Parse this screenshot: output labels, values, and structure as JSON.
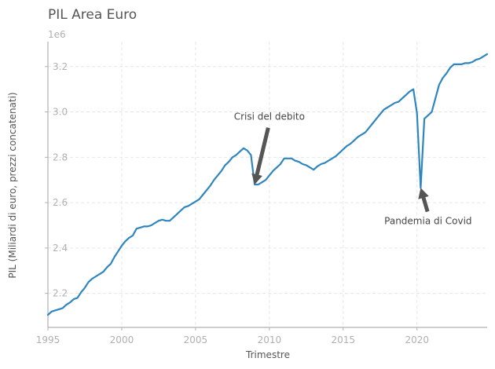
{
  "chart_data": {
    "type": "line",
    "title": "PIL Area Euro",
    "xlabel": "Trimestre",
    "ylabel": "PIL (Miliardi di euro, prezzi concatenati)",
    "y_offset_label": "1e6",
    "xlim": [
      1995.0,
      2024.75
    ],
    "ylim": [
      2.05,
      3.31
    ],
    "x_ticks": [
      1995,
      2000,
      2005,
      2010,
      2015,
      2020
    ],
    "x_tick_labels": [
      "1995",
      "2000",
      "2005",
      "2010",
      "2015",
      "2020"
    ],
    "y_ticks": [
      2.2,
      2.4,
      2.6,
      2.8,
      3.0,
      3.2
    ],
    "y_tick_labels": [
      "2.2",
      "2.4",
      "2.6",
      "2.8",
      "3.0",
      "3.2"
    ],
    "grid": true,
    "series": [
      {
        "color": "#2e86c1",
        "points": [
          [
            1995.0,
            2.105
          ],
          [
            1995.25,
            2.12
          ],
          [
            1995.5,
            2.125
          ],
          [
            1995.75,
            2.13
          ],
          [
            1996.0,
            2.135
          ],
          [
            1996.25,
            2.15
          ],
          [
            1996.5,
            2.16
          ],
          [
            1996.75,
            2.175
          ],
          [
            1997.0,
            2.18
          ],
          [
            1997.25,
            2.205
          ],
          [
            1997.5,
            2.225
          ],
          [
            1997.75,
            2.25
          ],
          [
            1998.0,
            2.265
          ],
          [
            1998.25,
            2.275
          ],
          [
            1998.5,
            2.285
          ],
          [
            1998.75,
            2.295
          ],
          [
            1999.0,
            2.315
          ],
          [
            1999.25,
            2.33
          ],
          [
            1999.5,
            2.36
          ],
          [
            1999.75,
            2.385
          ],
          [
            2000.0,
            2.41
          ],
          [
            2000.25,
            2.43
          ],
          [
            2000.5,
            2.445
          ],
          [
            2000.75,
            2.455
          ],
          [
            2001.0,
            2.485
          ],
          [
            2001.25,
            2.49
          ],
          [
            2001.5,
            2.495
          ],
          [
            2001.75,
            2.495
          ],
          [
            2002.0,
            2.5
          ],
          [
            2002.25,
            2.51
          ],
          [
            2002.5,
            2.52
          ],
          [
            2002.75,
            2.525
          ],
          [
            2003.0,
            2.52
          ],
          [
            2003.25,
            2.52
          ],
          [
            2003.5,
            2.535
          ],
          [
            2003.75,
            2.55
          ],
          [
            2004.0,
            2.565
          ],
          [
            2004.25,
            2.58
          ],
          [
            2004.5,
            2.585
          ],
          [
            2004.75,
            2.595
          ],
          [
            2005.0,
            2.605
          ],
          [
            2005.25,
            2.615
          ],
          [
            2005.5,
            2.635
          ],
          [
            2005.75,
            2.655
          ],
          [
            2006.0,
            2.675
          ],
          [
            2006.25,
            2.7
          ],
          [
            2006.5,
            2.72
          ],
          [
            2006.75,
            2.74
          ],
          [
            2007.0,
            2.765
          ],
          [
            2007.25,
            2.78
          ],
          [
            2007.5,
            2.8
          ],
          [
            2007.75,
            2.81
          ],
          [
            2008.0,
            2.825
          ],
          [
            2008.25,
            2.84
          ],
          [
            2008.5,
            2.83
          ],
          [
            2008.75,
            2.81
          ],
          [
            2009.0,
            2.68
          ],
          [
            2009.25,
            2.68
          ],
          [
            2009.5,
            2.69
          ],
          [
            2009.75,
            2.7
          ],
          [
            2010.0,
            2.72
          ],
          [
            2010.25,
            2.74
          ],
          [
            2010.5,
            2.755
          ],
          [
            2010.75,
            2.77
          ],
          [
            2011.0,
            2.795
          ],
          [
            2011.25,
            2.795
          ],
          [
            2011.5,
            2.795
          ],
          [
            2011.75,
            2.785
          ],
          [
            2012.0,
            2.78
          ],
          [
            2012.25,
            2.77
          ],
          [
            2012.5,
            2.765
          ],
          [
            2012.75,
            2.755
          ],
          [
            2013.0,
            2.745
          ],
          [
            2013.25,
            2.76
          ],
          [
            2013.5,
            2.77
          ],
          [
            2013.75,
            2.775
          ],
          [
            2014.0,
            2.785
          ],
          [
            2014.25,
            2.795
          ],
          [
            2014.5,
            2.805
          ],
          [
            2014.75,
            2.82
          ],
          [
            2015.0,
            2.835
          ],
          [
            2015.25,
            2.85
          ],
          [
            2015.5,
            2.86
          ],
          [
            2015.75,
            2.875
          ],
          [
            2016.0,
            2.89
          ],
          [
            2016.25,
            2.9
          ],
          [
            2016.5,
            2.91
          ],
          [
            2016.75,
            2.93
          ],
          [
            2017.0,
            2.95
          ],
          [
            2017.25,
            2.97
          ],
          [
            2017.5,
            2.99
          ],
          [
            2017.75,
            3.01
          ],
          [
            2018.0,
            3.02
          ],
          [
            2018.25,
            3.03
          ],
          [
            2018.5,
            3.04
          ],
          [
            2018.75,
            3.045
          ],
          [
            2019.0,
            3.06
          ],
          [
            2019.25,
            3.075
          ],
          [
            2019.5,
            3.09
          ],
          [
            2019.75,
            3.1
          ],
          [
            2020.0,
            2.995
          ],
          [
            2020.25,
            2.665
          ],
          [
            2020.5,
            2.97
          ],
          [
            2020.75,
            2.985
          ],
          [
            2021.0,
            3.0
          ],
          [
            2021.25,
            3.06
          ],
          [
            2021.5,
            3.12
          ],
          [
            2021.75,
            3.15
          ],
          [
            2022.0,
            3.17
          ],
          [
            2022.25,
            3.195
          ],
          [
            2022.5,
            3.21
          ],
          [
            2022.75,
            3.21
          ],
          [
            2023.0,
            3.21
          ],
          [
            2023.25,
            3.215
          ],
          [
            2023.5,
            3.215
          ],
          [
            2023.75,
            3.22
          ],
          [
            2024.0,
            3.23
          ],
          [
            2024.25,
            3.235
          ],
          [
            2024.5,
            3.245
          ],
          [
            2024.75,
            3.255
          ]
        ]
      }
    ],
    "annotations": [
      {
        "text": "Crisi del debito",
        "text_at": [
          2010.0,
          2.965
        ],
        "target": [
          2009.0,
          2.68
        ]
      },
      {
        "text": "Pandemia di Covid",
        "text_at": [
          2020.75,
          2.505
        ],
        "target": [
          2020.25,
          2.665
        ]
      }
    ],
    "arrow_color": "#555555"
  }
}
